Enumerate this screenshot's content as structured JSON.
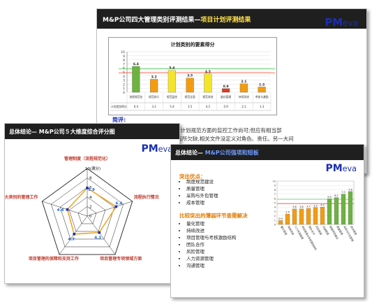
{
  "slide1": {
    "title": "M&P公司四大管理类别评测结果—",
    "title_accent": "项目计划评测结果",
    "logo_main": "PM",
    "logo_sub": "eva",
    "chart_data": {
      "type": "bar",
      "title": "计划类别的要素得分",
      "ylim": [
        0,
        10
      ],
      "yticks": [
        "0",
        "1",
        "2",
        "3",
        "4",
        "5",
        "6",
        "7",
        "8",
        "9",
        "10"
      ],
      "categories": [
        "流程规范化",
        "规范执行",
        "规范监控",
        "规范全面",
        "规范改进",
        "量化管理",
        "持续改进",
        "考核与激励"
      ],
      "values": [
        6.4,
        3.2,
        5.4,
        3.5,
        4.5,
        0.9,
        2.1,
        1.3
      ],
      "value_labels": [
        "6.4",
        "3.2",
        "5.4",
        "3.5",
        "4.5",
        "0.9",
        "2.1",
        "1.3"
      ],
      "colors": [
        "green",
        "orange",
        "yellow",
        "orange",
        "yellow",
        "red",
        "orange",
        "orange"
      ],
      "reference_lines": [
        5.8,
        4.8
      ],
      "table_row_label": "计划类别得分"
    },
    "comment_label": "简评:",
    "comment_lines": [
      "计划方面的制度比较完整。对计划规范方面的监控工作尚可;但应有相当部",
      "作没有文档化,且在执行方面有所欠缺,相关文件没定义对角色、责任。另一大问"
    ]
  },
  "slide2": {
    "title": "总体结论—  M&P公司５大维度综合评分图",
    "logo_main": "PM",
    "logo_sub": "eva",
    "chart_data": {
      "type": "radar",
      "axes": [
        "管理制度（流程规范化）",
        "流程执行情况",
        "项目管理专项领域方面",
        "项目管理的保障和支持工作",
        "项目管理四大类别的管理工作"
      ],
      "values": [
        5.9,
        6.4,
        4.3,
        4.7,
        4.4
      ],
      "value_labels": [
        "5.9",
        "6.4",
        "4.3",
        "4.7",
        "4.4"
      ],
      "range": [
        0,
        10
      ],
      "ticks": [
        "0",
        "2",
        "4",
        "6",
        "8",
        "10(满分)"
      ]
    }
  },
  "slide3": {
    "title": "总体结论—  ",
    "title_accent": "M&P公司强项和短板",
    "logo_main": "PM",
    "logo_sub": "eva",
    "strengths_heading": "突出优点：",
    "strengths": [
      "制度规范建设",
      "质量管理",
      "采购与外包管理",
      "成本管理"
    ],
    "weakness_heading": "比较突出的薄弱环节亟需解决",
    "weaknesses": [
      "量化管理",
      "持续改进",
      "项目管理与考核激励结构",
      "团队合作",
      "风险管理",
      "人力资源管理",
      "沟通管理"
    ],
    "chart_data": {
      "type": "bar",
      "values": [
        0.9,
        2.4,
        3.6,
        3.6,
        3.7,
        3.9,
        4.0,
        5.9,
        6.2,
        7.0,
        7.6
      ],
      "value_labels": [
        "0.9",
        "2.4",
        "3.6",
        "3.6",
        "3.7",
        "3.9",
        "4.0",
        "5.9",
        "6.2",
        "7.0",
        "7.6"
      ],
      "colors": [
        "orange",
        "orange",
        "orange",
        "orange",
        "orange",
        "orange",
        "orange",
        "green",
        "green",
        "green",
        "green"
      ],
      "categories": [
        "量化管理",
        "持续改进",
        "人力资源管理",
        "项目管理与考核激励结构",
        "团队合作",
        "风险管理",
        "沟通管理",
        "制度规范建设",
        "质量管理",
        "采购与外包管理",
        "成本管理"
      ],
      "ylim": [
        0,
        10
      ],
      "yticks": [
        "0",
        "1",
        "2",
        "3",
        "4",
        "5",
        "6",
        "7",
        "8",
        "9",
        "10"
      ],
      "reference_lines": [
        5.8,
        4.8
      ]
    }
  },
  "colors": {
    "green": "#6db33f",
    "yellow": "#f5e52a",
    "orange": "#f39c12",
    "red": "#e03a1e",
    "accent": "#1a2fb0",
    "title_accent": "#3d6ef0"
  }
}
